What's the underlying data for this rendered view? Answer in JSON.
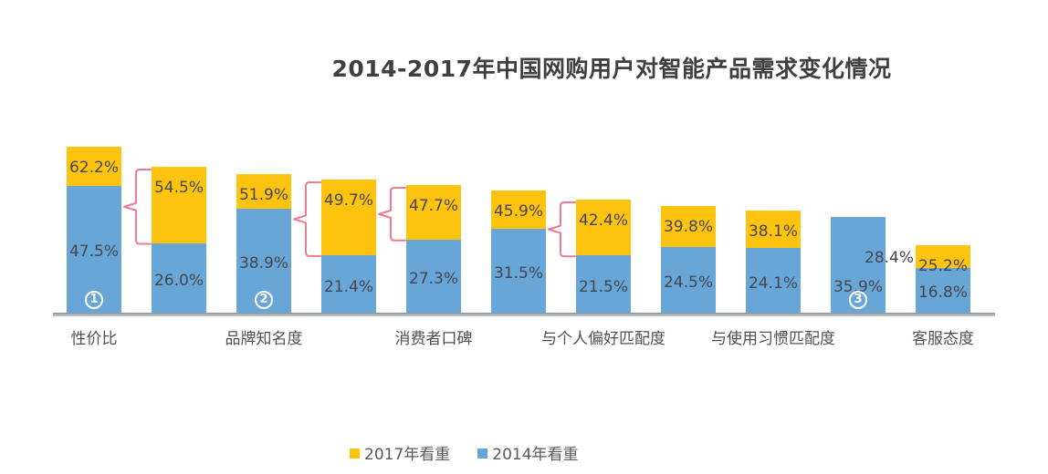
{
  "title": "2014-2017年中国网购用户对智能产品需求变化情况",
  "legend": {
    "items": [
      {
        "label": "2017年看重",
        "color": "#FDC30F"
      },
      {
        "label": "2014年看重",
        "color": "#68A6D8"
      }
    ]
  },
  "colors": {
    "bar_2017": "#FDC30F",
    "bar_2014": "#68A6D8",
    "brace": "#F07A8E",
    "axis": "#9AA1A8",
    "value_text": "#45464E",
    "category_text": "#505158",
    "title_text": "#3F3F3F",
    "marker_text": "#FFFFFF"
  },
  "chart_data": {
    "type": "bar",
    "stacked": true,
    "unit": "%",
    "title": "2014-2017年中国网购用户对智能产品需求变化情况",
    "series_names": [
      "2017年看重",
      "2014年看重"
    ],
    "legend_position": "bottom",
    "grid": false,
    "ylim": [
      0,
      70
    ],
    "visible_category_labels": [
      "性价比",
      "品牌知名度",
      "消费者口碑",
      "与个人偏好匹配度",
      "与使用习惯匹配度",
      "客服态度"
    ],
    "bars": [
      {
        "category": "性价比",
        "v2017": 62.2,
        "v2014": 47.5,
        "marker": "1"
      },
      {
        "category": "",
        "v2017": 54.5,
        "v2014": 26.0,
        "brace_before": true
      },
      {
        "category": "品牌知名度",
        "v2017": 51.9,
        "v2014": 38.9,
        "marker": "2"
      },
      {
        "category": "",
        "v2017": 49.7,
        "v2014": 21.4,
        "brace_before": true
      },
      {
        "category": "消费者口碑",
        "v2017": 47.7,
        "v2014": 27.3,
        "brace_before": true
      },
      {
        "category": "",
        "v2017": 45.9,
        "v2014": 31.5
      },
      {
        "category": "与个人偏好匹配度",
        "v2017": 42.4,
        "v2014": 21.5,
        "brace_before": true
      },
      {
        "category": "",
        "v2017": 39.8,
        "v2014": 24.5
      },
      {
        "category": "与使用习惯匹配度",
        "v2017": 38.1,
        "v2014": 24.1
      },
      {
        "category": "",
        "v2017": 28.4,
        "v2014": 35.9,
        "marker": "3",
        "v2017_label_outside": true
      },
      {
        "category": "客服态度",
        "v2017": 25.2,
        "v2014": 16.8
      }
    ]
  }
}
